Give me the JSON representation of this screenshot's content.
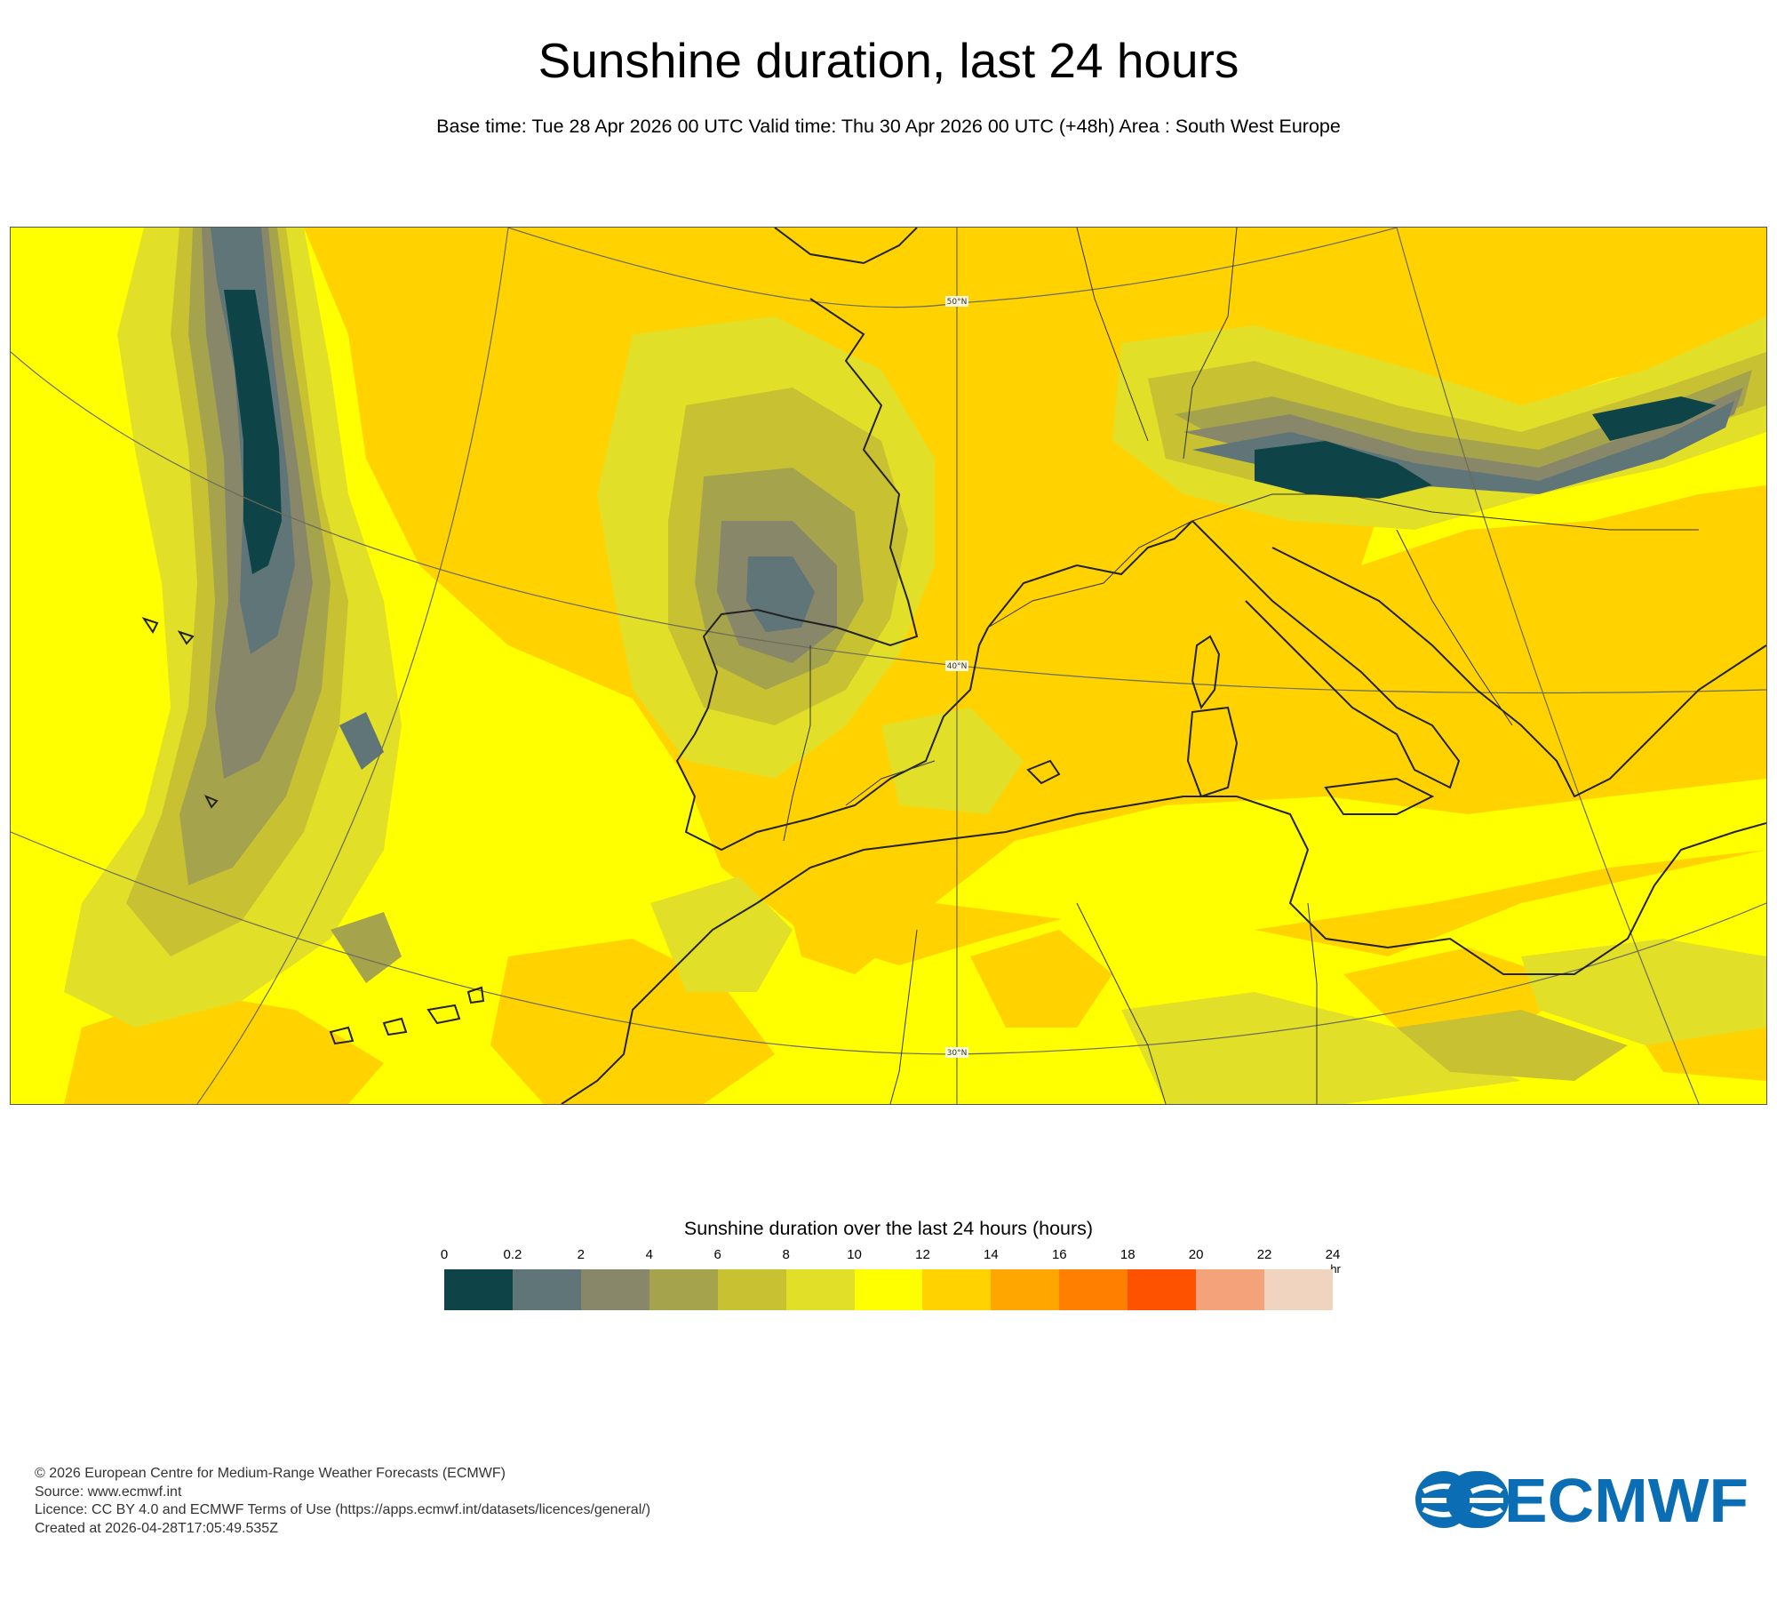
{
  "title": "Sunshine duration, last 24 hours",
  "subtitle": "Base time: Tue 28 Apr 2026 00 UTC Valid time: Thu 30 Apr 2026 00 UTC (+48h) Area : South West Europe",
  "map": {
    "latitude_labels": [
      "50°N",
      "40°N",
      "30°N"
    ],
    "colors": {
      "border": "#3a3a3a",
      "coast": "#222222",
      "grid": "#6b6b5a"
    }
  },
  "legend": {
    "title": "Sunshine duration over the last 24 hours (hours)",
    "unit": "-hr",
    "ticks": [
      "0",
      "0.2",
      "2",
      "4",
      "6",
      "8",
      "10",
      "12",
      "14",
      "16",
      "18",
      "20",
      "22",
      "24"
    ],
    "colors": [
      "#0e4347",
      "#5f7577",
      "#898769",
      "#a5a44d",
      "#c8c233",
      "#e2df28",
      "#ffff00",
      "#ffd200",
      "#ffa600",
      "#ff7f00",
      "#ff5200",
      "#f4a27a",
      "#f0d4c0"
    ]
  },
  "footer": {
    "copyright": "© 2026 European Centre for Medium-Range Weather Forecasts (ECMWF)",
    "source": "Source: www.ecmwf.int",
    "licence": "Licence: CC BY 4.0 and ECMWF Terms of Use (https://apps.ecmwf.int/datasets/licences/general/)",
    "created": "Created at 2026-04-28T17:05:49.535Z"
  },
  "logo": {
    "text": "ECMWF",
    "color": "#0b6db3"
  }
}
